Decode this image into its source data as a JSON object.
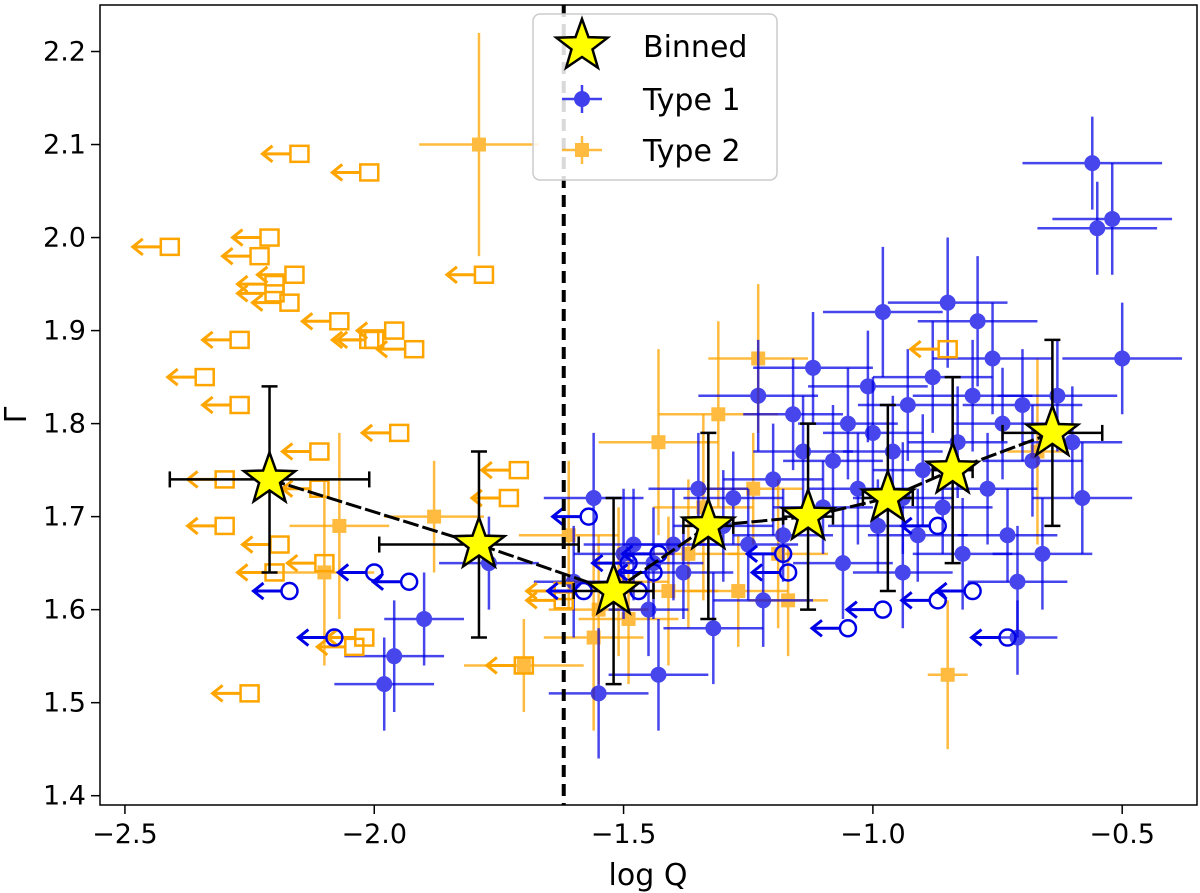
{
  "chart_data": {
    "type": "scatter",
    "title": "",
    "xlabel": "log Q",
    "ylabel": "Γ",
    "xlim": [
      -2.55,
      -0.35
    ],
    "ylim": [
      1.39,
      2.25
    ],
    "x_ticks": [
      -2.5,
      -2.0,
      -1.5,
      -1.0,
      -0.5
    ],
    "x_tick_labels": [
      "−2.5",
      "−2.0",
      "−1.5",
      "−1.0",
      "−0.5"
    ],
    "y_ticks": [
      1.4,
      1.5,
      1.6,
      1.7,
      1.8,
      1.9,
      2.0,
      2.1,
      2.2
    ],
    "y_tick_labels": [
      "1.4",
      "1.5",
      "1.6",
      "1.7",
      "1.8",
      "1.9",
      "2.0",
      "2.1",
      "2.2"
    ],
    "vline": -1.62,
    "colors": {
      "type1": "#0000e6",
      "type2": "#ffa500",
      "binned": "#ffff00",
      "binned_edge": "#000000"
    },
    "legend": {
      "position": "upper-center",
      "entries": [
        {
          "label": "Binned",
          "marker": "star"
        },
        {
          "label": "Type 1",
          "marker": "circle-errorbar"
        },
        {
          "label": "Type 2",
          "marker": "square-errorbar"
        }
      ]
    },
    "series": [
      {
        "name": "Binned",
        "points": [
          {
            "x": -2.21,
            "y": 1.74,
            "xerr": 0.2,
            "yerr": 0.1
          },
          {
            "x": -1.79,
            "y": 1.67,
            "xerr": 0.2,
            "yerr": 0.1
          },
          {
            "x": -1.52,
            "y": 1.62,
            "xerr": 0.08,
            "yerr": 0.1
          },
          {
            "x": -1.33,
            "y": 1.69,
            "xerr": 0.05,
            "yerr": 0.1
          },
          {
            "x": -1.13,
            "y": 1.7,
            "xerr": 0.05,
            "yerr": 0.1
          },
          {
            "x": -0.97,
            "y": 1.72,
            "xerr": 0.05,
            "yerr": 0.1
          },
          {
            "x": -0.84,
            "y": 1.75,
            "xerr": 0.04,
            "yerr": 0.1
          },
          {
            "x": -0.64,
            "y": 1.79,
            "xerr": 0.1,
            "yerr": 0.1
          }
        ]
      },
      {
        "name": "Type 1",
        "points": [
          {
            "x": -1.98,
            "y": 1.52,
            "xerr": 0.1,
            "yerr": 0.05
          },
          {
            "x": -1.96,
            "y": 1.55,
            "xerr": 0.1,
            "yerr": 0.06
          },
          {
            "x": -1.9,
            "y": 1.59,
            "xerr": 0.08,
            "yerr": 0.05
          },
          {
            "x": -1.77,
            "y": 1.65,
            "xerr": 0.1,
            "yerr": 0.05
          },
          {
            "x": -1.6,
            "y": 1.63,
            "xerr": 0.08,
            "yerr": 0.06
          },
          {
            "x": -1.56,
            "y": 1.72,
            "xerr": 0.1,
            "yerr": 0.07
          },
          {
            "x": -1.55,
            "y": 1.51,
            "xerr": 0.1,
            "yerr": 0.07
          },
          {
            "x": -1.5,
            "y": 1.66,
            "xerr": 0.1,
            "yerr": 0.07
          },
          {
            "x": -1.48,
            "y": 1.67,
            "xerr": 0.1,
            "yerr": 0.06
          },
          {
            "x": -1.45,
            "y": 1.6,
            "xerr": 0.08,
            "yerr": 0.05
          },
          {
            "x": -1.43,
            "y": 1.53,
            "xerr": 0.1,
            "yerr": 0.06
          },
          {
            "x": -1.4,
            "y": 1.67,
            "xerr": 0.1,
            "yerr": 0.06
          },
          {
            "x": -1.38,
            "y": 1.64,
            "xerr": 0.1,
            "yerr": 0.05
          },
          {
            "x": -1.35,
            "y": 1.73,
            "xerr": 0.1,
            "yerr": 0.06
          },
          {
            "x": -1.32,
            "y": 1.58,
            "xerr": 0.1,
            "yerr": 0.06
          },
          {
            "x": -1.3,
            "y": 1.69,
            "xerr": 0.1,
            "yerr": 0.06
          },
          {
            "x": -1.28,
            "y": 1.72,
            "xerr": 0.1,
            "yerr": 0.05
          },
          {
            "x": -1.25,
            "y": 1.67,
            "xerr": 0.1,
            "yerr": 0.06
          },
          {
            "x": -1.23,
            "y": 1.83,
            "xerr": 0.12,
            "yerr": 0.06
          },
          {
            "x": -1.2,
            "y": 1.74,
            "xerr": 0.1,
            "yerr": 0.06
          },
          {
            "x": -1.18,
            "y": 1.68,
            "xerr": 0.1,
            "yerr": 0.05
          },
          {
            "x": -1.16,
            "y": 1.81,
            "xerr": 0.1,
            "yerr": 0.06
          },
          {
            "x": -1.14,
            "y": 1.77,
            "xerr": 0.1,
            "yerr": 0.06
          },
          {
            "x": -1.12,
            "y": 1.86,
            "xerr": 0.12,
            "yerr": 0.06
          },
          {
            "x": -1.1,
            "y": 1.71,
            "xerr": 0.1,
            "yerr": 0.05
          },
          {
            "x": -1.08,
            "y": 1.76,
            "xerr": 0.1,
            "yerr": 0.06
          },
          {
            "x": -1.06,
            "y": 1.65,
            "xerr": 0.1,
            "yerr": 0.06
          },
          {
            "x": -1.05,
            "y": 1.8,
            "xerr": 0.1,
            "yerr": 0.06
          },
          {
            "x": -1.03,
            "y": 1.73,
            "xerr": 0.1,
            "yerr": 0.06
          },
          {
            "x": -1.01,
            "y": 1.84,
            "xerr": 0.12,
            "yerr": 0.06
          },
          {
            "x": -0.99,
            "y": 1.69,
            "xerr": 0.1,
            "yerr": 0.05
          },
          {
            "x": -0.98,
            "y": 1.92,
            "xerr": 0.12,
            "yerr": 0.07
          },
          {
            "x": -0.96,
            "y": 1.77,
            "xerr": 0.1,
            "yerr": 0.06
          },
          {
            "x": -0.94,
            "y": 1.64,
            "xerr": 0.1,
            "yerr": 0.06
          },
          {
            "x": -0.93,
            "y": 1.82,
            "xerr": 0.1,
            "yerr": 0.06
          },
          {
            "x": -0.91,
            "y": 1.68,
            "xerr": 0.1,
            "yerr": 0.05
          },
          {
            "x": -0.9,
            "y": 1.75,
            "xerr": 0.1,
            "yerr": 0.06
          },
          {
            "x": -0.88,
            "y": 1.85,
            "xerr": 0.12,
            "yerr": 0.06
          },
          {
            "x": -0.86,
            "y": 1.71,
            "xerr": 0.1,
            "yerr": 0.05
          },
          {
            "x": -0.85,
            "y": 1.93,
            "xerr": 0.12,
            "yerr": 0.07
          },
          {
            "x": -0.83,
            "y": 1.78,
            "xerr": 0.1,
            "yerr": 0.06
          },
          {
            "x": -0.82,
            "y": 1.66,
            "xerr": 0.1,
            "yerr": 0.06
          },
          {
            "x": -0.8,
            "y": 1.83,
            "xerr": 0.12,
            "yerr": 0.06
          },
          {
            "x": -0.79,
            "y": 1.91,
            "xerr": 0.12,
            "yerr": 0.07
          },
          {
            "x": -0.77,
            "y": 1.73,
            "xerr": 0.1,
            "yerr": 0.06
          },
          {
            "x": -0.76,
            "y": 1.87,
            "xerr": 0.12,
            "yerr": 0.06
          },
          {
            "x": -0.74,
            "y": 1.8,
            "xerr": 0.1,
            "yerr": 0.06
          },
          {
            "x": -0.73,
            "y": 1.68,
            "xerr": 0.1,
            "yerr": 0.05
          },
          {
            "x": -0.71,
            "y": 1.63,
            "xerr": 0.1,
            "yerr": 0.06
          },
          {
            "x": -0.7,
            "y": 1.82,
            "xerr": 0.12,
            "yerr": 0.06
          },
          {
            "x": -0.68,
            "y": 1.76,
            "xerr": 0.1,
            "yerr": 0.06
          },
          {
            "x": -0.66,
            "y": 1.66,
            "xerr": 0.1,
            "yerr": 0.06
          },
          {
            "x": -0.63,
            "y": 1.83,
            "xerr": 0.12,
            "yerr": 0.06
          },
          {
            "x": -0.6,
            "y": 1.78,
            "xerr": 0.1,
            "yerr": 0.06
          },
          {
            "x": -0.58,
            "y": 1.72,
            "xerr": 0.1,
            "yerr": 0.06
          },
          {
            "x": -0.56,
            "y": 2.08,
            "xerr": 0.14,
            "yerr": 0.05
          },
          {
            "x": -0.55,
            "y": 2.01,
            "xerr": 0.12,
            "yerr": 0.05
          },
          {
            "x": -0.52,
            "y": 2.02,
            "xerr": 0.12,
            "yerr": 0.06
          },
          {
            "x": -0.5,
            "y": 1.87,
            "xerr": 0.12,
            "yerr": 0.06
          },
          {
            "x": -0.71,
            "y": 1.57,
            "xerr": 0.08,
            "yerr": 0.04
          },
          {
            "x": -0.94,
            "y": 1.72,
            "xerr": 0.1,
            "yerr": 0.06
          },
          {
            "x": -1.0,
            "y": 1.79,
            "xerr": 0.1,
            "yerr": 0.06
          },
          {
            "x": -1.22,
            "y": 1.61,
            "xerr": 0.1,
            "yerr": 0.05
          },
          {
            "x": -1.44,
            "y": 1.65,
            "xerr": 0.1,
            "yerr": 0.06
          }
        ]
      },
      {
        "name": "Type 1 upper limits",
        "points": [
          {
            "x": -2.17,
            "y": 1.62
          },
          {
            "x": -2.08,
            "y": 1.57
          },
          {
            "x": -2.0,
            "y": 1.64
          },
          {
            "x": -1.93,
            "y": 1.63
          },
          {
            "x": -1.57,
            "y": 1.7
          },
          {
            "x": -1.58,
            "y": 1.62
          },
          {
            "x": -1.47,
            "y": 1.62
          },
          {
            "x": -1.44,
            "y": 1.64
          },
          {
            "x": -1.43,
            "y": 1.66
          },
          {
            "x": -1.49,
            "y": 1.65
          },
          {
            "x": -1.18,
            "y": 1.66
          },
          {
            "x": -1.17,
            "y": 1.64
          },
          {
            "x": -1.05,
            "y": 1.58
          },
          {
            "x": -0.98,
            "y": 1.6
          },
          {
            "x": -0.87,
            "y": 1.61
          },
          {
            "x": -0.8,
            "y": 1.62
          },
          {
            "x": -0.87,
            "y": 1.69
          },
          {
            "x": -0.73,
            "y": 1.57
          }
        ]
      },
      {
        "name": "Type 2",
        "points": [
          {
            "x": -1.79,
            "y": 2.1,
            "xerr": 0.12,
            "yerr": 0.12
          },
          {
            "x": -2.07,
            "y": 1.69,
            "xerr": 0.1,
            "yerr": 0.1
          },
          {
            "x": -2.1,
            "y": 1.64,
            "xerr": 0.1,
            "yerr": 0.1
          },
          {
            "x": -1.88,
            "y": 1.7,
            "xerr": 0.1,
            "yerr": 0.06
          },
          {
            "x": -1.7,
            "y": 1.54,
            "xerr": 0.12,
            "yerr": 0.05
          },
          {
            "x": -1.61,
            "y": 1.68,
            "xerr": 0.1,
            "yerr": 0.08
          },
          {
            "x": -1.56,
            "y": 1.57,
            "xerr": 0.1,
            "yerr": 0.1
          },
          {
            "x": -1.55,
            "y": 1.6,
            "xerr": 0.1,
            "yerr": 0.08
          },
          {
            "x": -1.51,
            "y": 1.63,
            "xerr": 0.1,
            "yerr": 0.08
          },
          {
            "x": -1.49,
            "y": 1.59,
            "xerr": 0.1,
            "yerr": 0.07
          },
          {
            "x": -1.43,
            "y": 1.78,
            "xerr": 0.12,
            "yerr": 0.1
          },
          {
            "x": -1.41,
            "y": 1.62,
            "xerr": 0.1,
            "yerr": 0.08
          },
          {
            "x": -1.37,
            "y": 1.66,
            "xerr": 0.1,
            "yerr": 0.08
          },
          {
            "x": -1.34,
            "y": 1.71,
            "xerr": 0.1,
            "yerr": 0.1
          },
          {
            "x": -1.31,
            "y": 1.81,
            "xerr": 0.12,
            "yerr": 0.1
          },
          {
            "x": -1.27,
            "y": 1.62,
            "xerr": 0.1,
            "yerr": 0.06
          },
          {
            "x": -1.24,
            "y": 1.73,
            "xerr": 0.1,
            "yerr": 0.06
          },
          {
            "x": -1.23,
            "y": 1.87,
            "xerr": 0.1,
            "yerr": 0.08
          },
          {
            "x": -1.19,
            "y": 1.66,
            "xerr": 0.1,
            "yerr": 0.08
          },
          {
            "x": -1.17,
            "y": 1.61,
            "xerr": 0.08,
            "yerr": 0.06
          },
          {
            "x": -0.85,
            "y": 1.53,
            "xerr": 0.04,
            "yerr": 0.08
          },
          {
            "x": -0.67,
            "y": 1.77,
            "xerr": 0.06,
            "yerr": 0.1
          }
        ]
      },
      {
        "name": "Type 2 upper limits",
        "points": [
          {
            "x": -2.15,
            "y": 2.09
          },
          {
            "x": -2.01,
            "y": 2.07
          },
          {
            "x": -2.41,
            "y": 1.99
          },
          {
            "x": -2.21,
            "y": 2.0
          },
          {
            "x": -2.23,
            "y": 1.98
          },
          {
            "x": -2.16,
            "y": 1.96
          },
          {
            "x": -2.2,
            "y": 1.95
          },
          {
            "x": -2.2,
            "y": 1.94
          },
          {
            "x": -2.17,
            "y": 1.93
          },
          {
            "x": -2.27,
            "y": 1.89
          },
          {
            "x": -2.07,
            "y": 1.91
          },
          {
            "x": -1.96,
            "y": 1.9
          },
          {
            "x": -2.0,
            "y": 1.89
          },
          {
            "x": -2.01,
            "y": 1.89
          },
          {
            "x": -1.92,
            "y": 1.88
          },
          {
            "x": -2.34,
            "y": 1.85
          },
          {
            "x": -2.27,
            "y": 1.82
          },
          {
            "x": -2.11,
            "y": 1.77
          },
          {
            "x": -1.95,
            "y": 1.79
          },
          {
            "x": -2.3,
            "y": 1.74
          },
          {
            "x": -2.11,
            "y": 1.73
          },
          {
            "x": -2.3,
            "y": 1.69
          },
          {
            "x": -2.19,
            "y": 1.67
          },
          {
            "x": -2.1,
            "y": 1.65
          },
          {
            "x": -2.2,
            "y": 1.64
          },
          {
            "x": -2.02,
            "y": 1.57
          },
          {
            "x": -2.04,
            "y": 1.56
          },
          {
            "x": -2.25,
            "y": 1.51
          },
          {
            "x": -1.78,
            "y": 1.96
          },
          {
            "x": -1.71,
            "y": 1.75
          },
          {
            "x": -1.73,
            "y": 1.72
          },
          {
            "x": -1.62,
            "y": 1.62
          },
          {
            "x": -1.7,
            "y": 1.54
          },
          {
            "x": -1.62,
            "y": 1.61
          },
          {
            "x": -0.85,
            "y": 1.88
          }
        ]
      }
    ]
  }
}
